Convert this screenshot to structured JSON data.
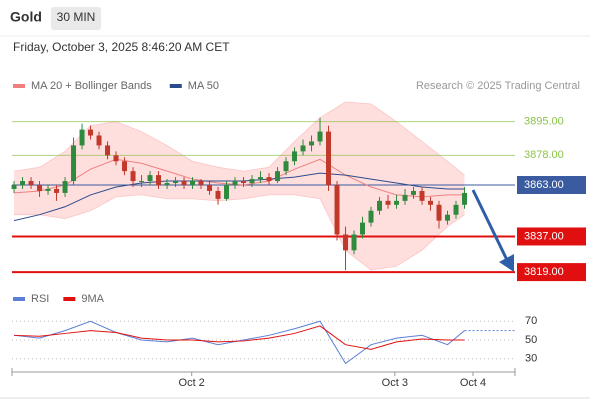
{
  "header": {
    "symbol": "Gold",
    "interval": "30 MIN",
    "timestamp": "Friday, October 3, 2025 8:46:20 AM CET",
    "credit": "Research © 2025 Trading Central"
  },
  "chart_data": [
    {
      "type": "candlestick",
      "up_color": "#2e8b3e",
      "down_color": "#c0392b",
      "candles": [
        [
          3861,
          3865,
          3859,
          3863
        ],
        [
          3863,
          3867,
          3861,
          3865
        ],
        [
          3865,
          3867,
          3861,
          3863
        ],
        [
          3863,
          3865,
          3857,
          3860
        ],
        [
          3860,
          3863,
          3858,
          3861
        ],
        [
          3861,
          3863,
          3855,
          3859
        ],
        [
          3859,
          3867,
          3857,
          3865
        ],
        [
          3865,
          3887,
          3863,
          3883
        ],
        [
          3883,
          3894,
          3881,
          3891
        ],
        [
          3891,
          3893,
          3886,
          3888
        ],
        [
          3888,
          3890,
          3881,
          3883
        ],
        [
          3883,
          3885,
          3876,
          3878
        ],
        [
          3878,
          3880,
          3873,
          3875
        ],
        [
          3875,
          3877,
          3868,
          3870
        ],
        [
          3870,
          3872,
          3862,
          3865
        ],
        [
          3865,
          3868,
          3862,
          3865
        ],
        [
          3865,
          3870,
          3863,
          3868
        ],
        [
          3868,
          3870,
          3861,
          3863
        ],
        [
          3863,
          3866,
          3861,
          3864
        ],
        [
          3864,
          3867,
          3862,
          3865
        ],
        [
          3865,
          3867,
          3861,
          3863
        ],
        [
          3863,
          3867,
          3861,
          3865
        ],
        [
          3865,
          3866,
          3861,
          3863
        ],
        [
          3863,
          3865,
          3858,
          3860
        ],
        [
          3860,
          3862,
          3853,
          3856
        ],
        [
          3856,
          3865,
          3855,
          3863
        ],
        [
          3863,
          3867,
          3861,
          3865
        ],
        [
          3865,
          3867,
          3862,
          3864
        ],
        [
          3864,
          3868,
          3862,
          3866
        ],
        [
          3866,
          3870,
          3864,
          3867
        ],
        [
          3867,
          3869,
          3863,
          3865
        ],
        [
          3865,
          3872,
          3864,
          3870
        ],
        [
          3870,
          3877,
          3868,
          3875
        ],
        [
          3875,
          3882,
          3873,
          3880
        ],
        [
          3880,
          3886,
          3878,
          3883
        ],
        [
          3883,
          3888,
          3880,
          3885
        ],
        [
          3885,
          3897,
          3883,
          3890
        ],
        [
          3890,
          3893,
          3860,
          3863
        ],
        [
          3863,
          3865,
          3835,
          3838
        ],
        [
          3838,
          3842,
          3820,
          3830
        ],
        [
          3830,
          3840,
          3828,
          3838
        ],
        [
          3838,
          3847,
          3836,
          3844
        ],
        [
          3844,
          3852,
          3842,
          3850
        ],
        [
          3850,
          3857,
          3848,
          3855
        ],
        [
          3855,
          3858,
          3851,
          3853
        ],
        [
          3853,
          3858,
          3851,
          3855
        ],
        [
          3855,
          3861,
          3853,
          3858
        ],
        [
          3858,
          3862,
          3856,
          3860
        ],
        [
          3860,
          3862,
          3853,
          3855
        ],
        [
          3855,
          3857,
          3850,
          3853
        ],
        [
          3853,
          3855,
          3841,
          3845
        ],
        [
          3845,
          3850,
          3843,
          3848
        ],
        [
          3848,
          3855,
          3846,
          3853
        ],
        [
          3853,
          3862,
          3851,
          3859
        ]
      ],
      "x": [
        0,
        3,
        6,
        9,
        12,
        15,
        18,
        21,
        24,
        27,
        30,
        33,
        36,
        39,
        42,
        45,
        48,
        51,
        53
      ],
      "series": [
        {
          "name": "MA 20 + Bollinger Bands",
          "color": "#f08080",
          "band_color": "#ffd6d6",
          "values": [
            3859,
            3860,
            3863,
            3871,
            3876,
            3874,
            3870,
            3866,
            3864,
            3863,
            3865,
            3871,
            3876,
            3868,
            3862,
            3858,
            3857,
            3858,
            3858
          ],
          "upper": [
            3870,
            3872,
            3880,
            3893,
            3895,
            3890,
            3883,
            3875,
            3872,
            3870,
            3872,
            3885,
            3897,
            3905,
            3904,
            3895,
            3885,
            3875,
            3868
          ],
          "lower": [
            3848,
            3848,
            3846,
            3850,
            3857,
            3858,
            3856,
            3856,
            3855,
            3856,
            3858,
            3858,
            3856,
            3830,
            3820,
            3822,
            3830,
            3842,
            3848
          ]
        },
        {
          "name": "MA 50",
          "color": "#2b4c8c",
          "values": [
            3845,
            3848,
            3852,
            3858,
            3862,
            3864,
            3865,
            3865,
            3865,
            3865,
            3866,
            3867,
            3869,
            3868,
            3866,
            3864,
            3862,
            3861,
            3861
          ]
        }
      ],
      "levels": [
        {
          "value": 3895,
          "label": "3895.00",
          "color": "#8bc34a",
          "boxed": false
        },
        {
          "value": 3878,
          "label": "3878.00",
          "color": "#8bc34a",
          "boxed": false
        },
        {
          "value": 3863,
          "label": "3863.00",
          "color": "#3a5ba0",
          "boxed": true
        },
        {
          "value": 3837,
          "label": "3837.00",
          "color": "#e01010",
          "boxed": true
        },
        {
          "value": 3819,
          "label": "3819.00",
          "color": "#e01010",
          "boxed": true
        }
      ],
      "ylim": [
        3814,
        3911
      ],
      "xlim": [
        -0.24,
        58.94
      ],
      "xticks": [
        {
          "value": 20.9,
          "label": "Oct 2"
        },
        {
          "value": 44.8,
          "label": "Oct 3"
        },
        {
          "value": 54.0,
          "label": "Oct 4"
        }
      ]
    },
    {
      "type": "line",
      "x": [
        0,
        3,
        6,
        9,
        12,
        15,
        18,
        21,
        24,
        27,
        30,
        33,
        36,
        39,
        42,
        45,
        48,
        51,
        53
      ],
      "series": [
        {
          "name": "RSI",
          "color": "#5b7fd6",
          "values": [
            55,
            52,
            60,
            70,
            58,
            50,
            48,
            52,
            45,
            50,
            55,
            62,
            70,
            25,
            45,
            52,
            55,
            45,
            60
          ]
        },
        {
          "name": "9MA",
          "color": "#e01010",
          "values": [
            55,
            54,
            57,
            60,
            58,
            52,
            50,
            50,
            48,
            49,
            52,
            57,
            65,
            45,
            40,
            48,
            51,
            50,
            50
          ]
        }
      ],
      "ylim": [
        18,
        82
      ],
      "yticks": [
        30,
        50,
        70
      ],
      "xlim": [
        -0.24,
        58.94
      ],
      "grid": true
    }
  ]
}
